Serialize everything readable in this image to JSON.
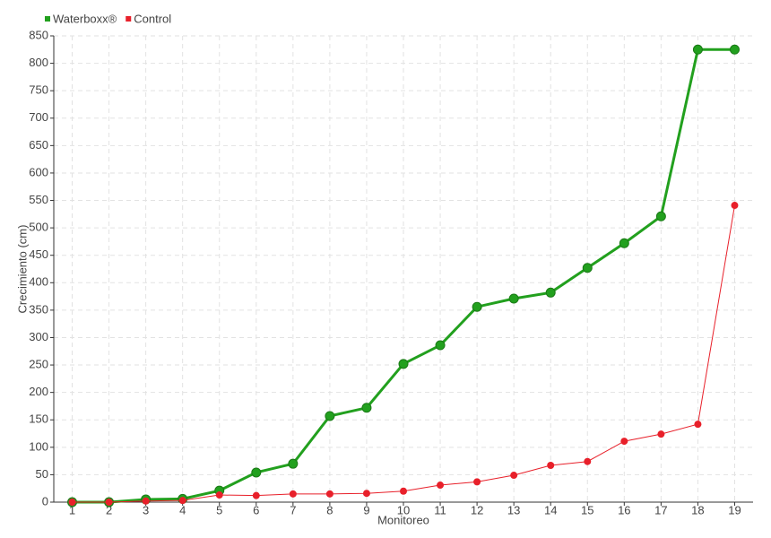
{
  "chart_data": {
    "type": "line",
    "x_label": "Monitoreo",
    "y_label": "Crecimiento (cm)",
    "categories": [
      "1",
      "2",
      "3",
      "4",
      "5",
      "6",
      "7",
      "8",
      "9",
      "10",
      "11",
      "12",
      "13",
      "14",
      "15",
      "16",
      "17",
      "18",
      "19"
    ],
    "series": [
      {
        "name": "Waterboxx®",
        "color": "#22a01e",
        "values": [
          0,
          0,
          5,
          6,
          21,
          54,
          70,
          157,
          172,
          252,
          286,
          356,
          371,
          382,
          427,
          472,
          521,
          825,
          825
        ]
      },
      {
        "name": "Control",
        "color": "#e8202a",
        "values": [
          0,
          0,
          2,
          3,
          13,
          12,
          15,
          15,
          16,
          20,
          31,
          37,
          49,
          67,
          74,
          111,
          124,
          142,
          541
        ]
      }
    ],
    "ylim": [
      0,
      850
    ],
    "yticks": [
      0,
      50,
      100,
      150,
      200,
      250,
      300,
      350,
      400,
      450,
      500,
      550,
      600,
      650,
      700,
      750,
      800,
      850
    ],
    "grid": true,
    "legend": "top-left"
  }
}
